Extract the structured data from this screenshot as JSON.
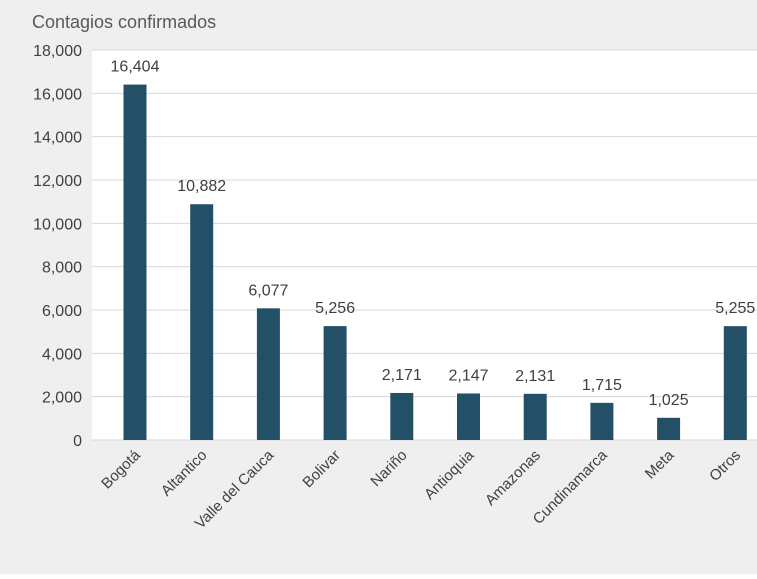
{
  "chart_data": {
    "type": "bar",
    "title": "",
    "ylabel": "Contagios confirmados",
    "xlabel": "",
    "categories": [
      "Bogotá",
      "Altantico",
      "Valle del Cauca",
      "Bolivar",
      "Nariño",
      "Antioquia",
      "Amazonas",
      "Cundinamarca",
      "Meta",
      "Otros"
    ],
    "values": [
      16404,
      10882,
      6077,
      5256,
      2171,
      2147,
      2131,
      1715,
      1025,
      5255
    ],
    "value_labels": [
      "16,404",
      "10,882",
      "6,077",
      "5,256",
      "2,171",
      "2,147",
      "2,131",
      "1,715",
      "1,025",
      "5,255"
    ],
    "ylim": [
      0,
      18000
    ],
    "yticks": [
      0,
      2000,
      4000,
      6000,
      8000,
      10000,
      12000,
      14000,
      16000,
      18000
    ],
    "ytick_labels": [
      "0",
      "2,000",
      "4,000",
      "6,000",
      "8,000",
      "10,000",
      "12,000",
      "14,000",
      "16,000",
      "18,000"
    ],
    "grid": true,
    "legend": "none"
  },
  "colors": {
    "outer_background": "#efefef",
    "plot_background": "#ffffff",
    "bar": "#234f67",
    "gridline": "#d9d9d9",
    "text": "#404040",
    "ylabel_text": "#595959"
  }
}
